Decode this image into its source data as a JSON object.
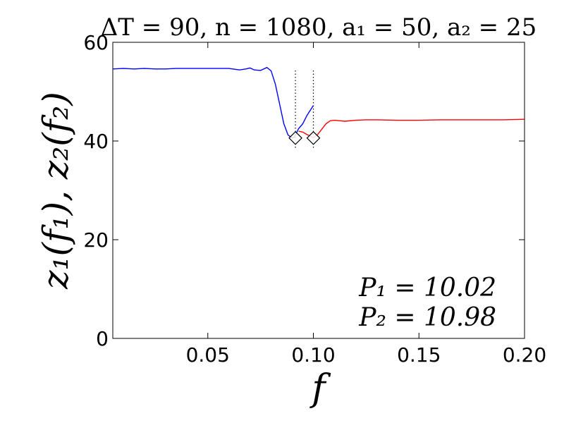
{
  "chart_data": {
    "type": "line",
    "title": "ΔT = 90, n = 1080, a₁ = 50, a₂ = 25",
    "xlabel": "f",
    "ylabel": "z₁(f₁), z₂(f₂)",
    "xlim": [
      0.005,
      0.2
    ],
    "ylim": [
      0,
      60
    ],
    "x_ticks": [
      0.05,
      0.1,
      0.15,
      0.2
    ],
    "x_tick_labels": [
      "0.05",
      "0.10",
      "0.15",
      "0.20"
    ],
    "y_ticks": [
      0,
      20,
      40,
      60
    ],
    "y_tick_labels": [
      "0",
      "20",
      "40",
      "60"
    ],
    "grid": false,
    "series": [
      {
        "color": "#0000ff",
        "x": [
          0.005,
          0.01,
          0.015,
          0.02,
          0.025,
          0.03,
          0.035,
          0.04,
          0.045,
          0.05,
          0.055,
          0.06,
          0.065,
          0.068,
          0.07,
          0.072,
          0.075,
          0.078,
          0.08,
          0.082,
          0.084,
          0.086,
          0.088,
          0.09,
          0.091,
          0.093,
          0.095,
          0.097,
          0.1
        ],
        "y": [
          54.6,
          54.7,
          54.6,
          54.7,
          54.6,
          54.6,
          54.7,
          54.7,
          54.7,
          54.7,
          54.7,
          54.7,
          54.4,
          54.6,
          54.8,
          54.4,
          54.3,
          54.9,
          54.2,
          51.5,
          47.5,
          43.5,
          41.2,
          40.6,
          40.8,
          42.5,
          43.5,
          45.2,
          47.2
        ]
      },
      {
        "color": "#ff0000",
        "x": [
          0.093,
          0.095,
          0.097,
          0.1,
          0.102,
          0.104,
          0.106,
          0.108,
          0.11,
          0.115,
          0.12,
          0.125,
          0.13,
          0.14,
          0.15,
          0.16,
          0.17,
          0.18,
          0.19,
          0.2
        ],
        "y": [
          42.0,
          41.8,
          41.3,
          40.7,
          41.3,
          42.4,
          43.5,
          44.1,
          44.2,
          44.0,
          44.2,
          44.3,
          44.3,
          44.2,
          44.2,
          44.3,
          44.3,
          44.3,
          44.3,
          44.4
        ]
      }
    ],
    "markers": [
      {
        "x": 0.0915,
        "y": 40.6,
        "shape": "diamond"
      },
      {
        "x": 0.1,
        "y": 40.6,
        "shape": "diamond"
      }
    ],
    "vlines": [
      0.0915,
      0.1
    ],
    "annotations": [
      "P₁ = 10.02",
      "P₂ = 10.98"
    ],
    "legend": "none"
  }
}
